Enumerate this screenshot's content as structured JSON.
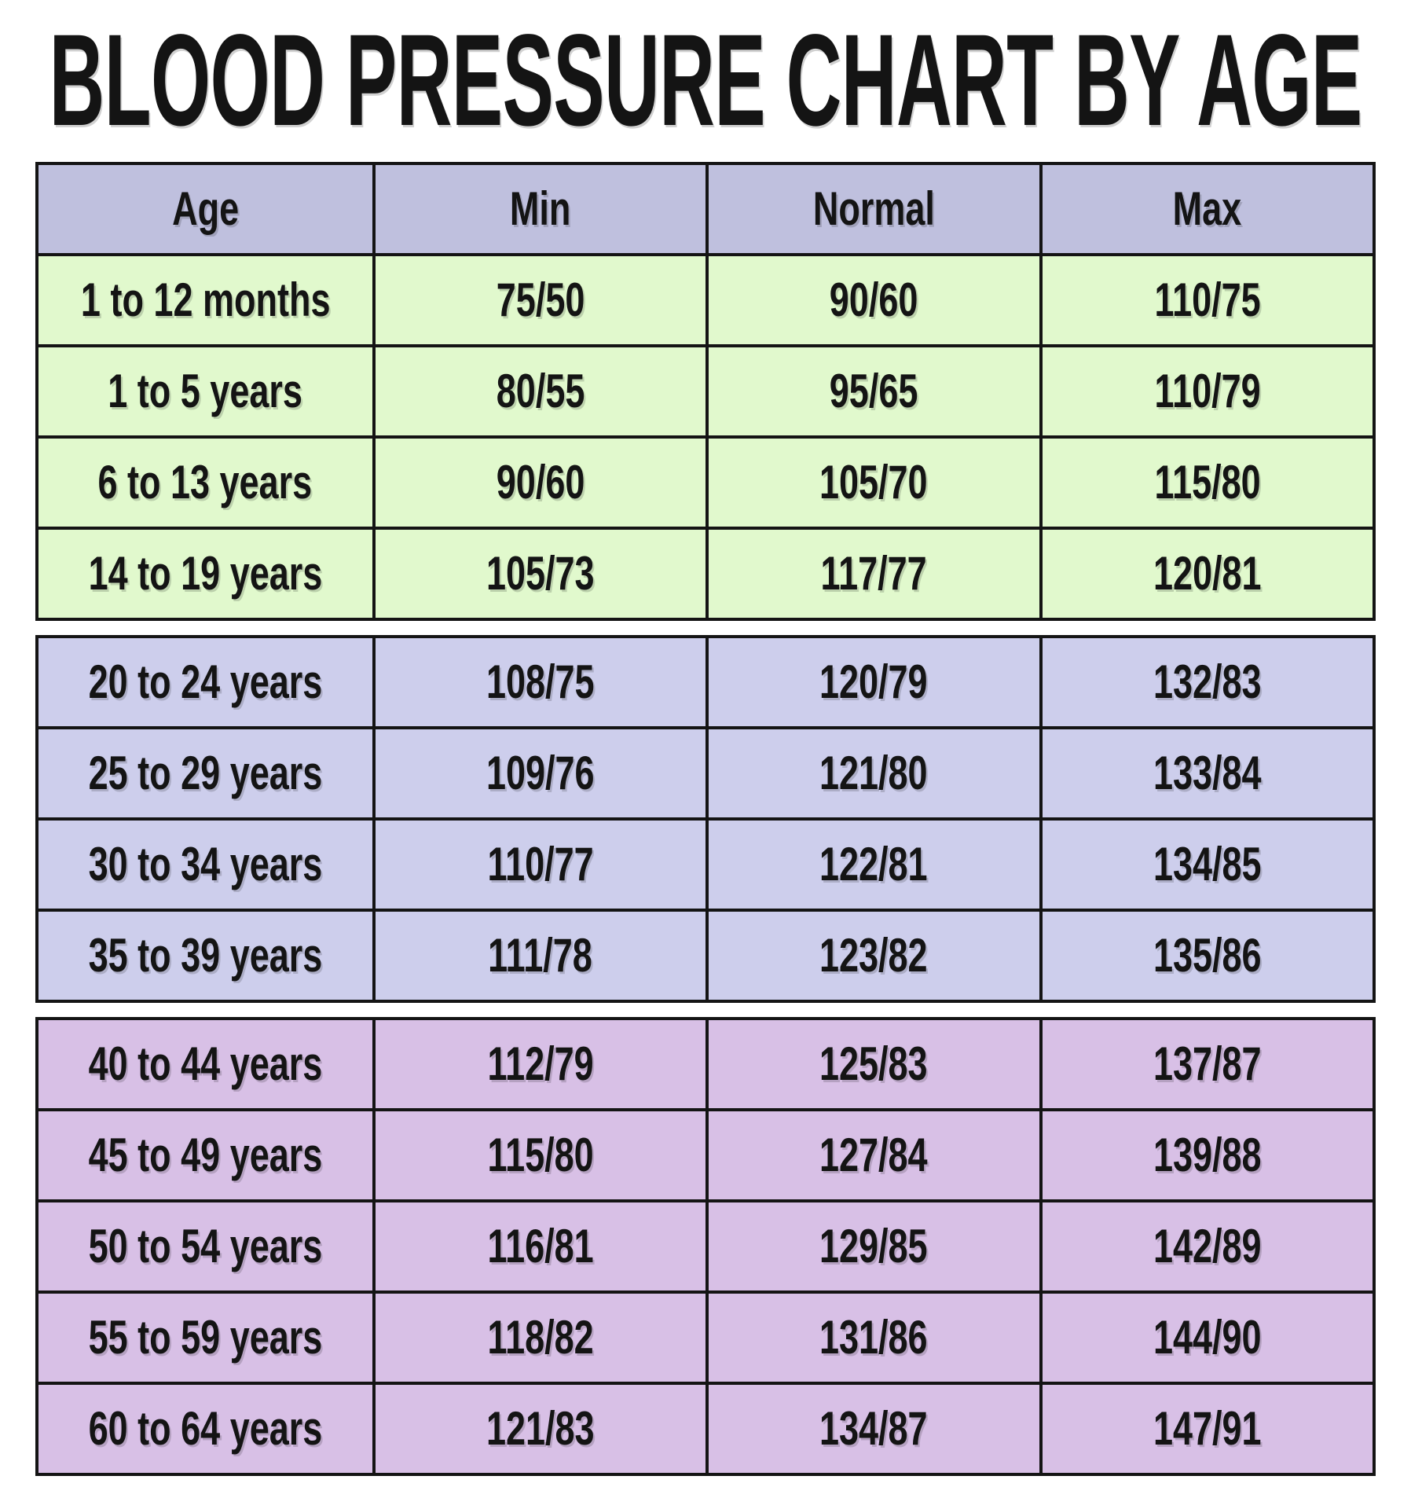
{
  "title": "BLOOD PRESSURE CHART BY AGE",
  "colors": {
    "page_bg": "#ffffff",
    "header_bg": "#bfc0de",
    "border": "#141414",
    "text": "#141414",
    "section_infants_teens_bg": "#e1f9cd",
    "section_20_39_bg": "#cdceec",
    "section_40_64_bg": "#d8c0e6"
  },
  "table": {
    "columns": [
      "Age",
      "Min",
      "Normal",
      "Max"
    ],
    "sections": [
      {
        "name": "infants-and-teens",
        "bg": "#e1f9cd",
        "rows": [
          {
            "age": "1 to 12 months",
            "min": "75/50",
            "normal": "90/60",
            "max": "110/75"
          },
          {
            "age": "1 to 5 years",
            "min": "80/55",
            "normal": "95/65",
            "max": "110/79"
          },
          {
            "age": "6 to 13 years",
            "min": "90/60",
            "normal": "105/70",
            "max": "115/80"
          },
          {
            "age": "14 to 19 years",
            "min": "105/73",
            "normal": "117/77",
            "max": "120/81"
          }
        ]
      },
      {
        "name": "adults-20-39",
        "bg": "#cdceec",
        "rows": [
          {
            "age": "20 to 24 years",
            "min": "108/75",
            "normal": "120/79",
            "max": "132/83"
          },
          {
            "age": "25 to 29 years",
            "min": "109/76",
            "normal": "121/80",
            "max": "133/84"
          },
          {
            "age": "30 to 34 years",
            "min": "110/77",
            "normal": "122/81",
            "max": "134/85"
          },
          {
            "age": "35 to 39 years",
            "min": "111/78",
            "normal": "123/82",
            "max": "135/86"
          }
        ]
      },
      {
        "name": "adults-40-64",
        "bg": "#d8c0e6",
        "rows": [
          {
            "age": "40 to 44 years",
            "min": "112/79",
            "normal": "125/83",
            "max": "137/87"
          },
          {
            "age": "45 to 49 years",
            "min": "115/80",
            "normal": "127/84",
            "max": "139/88"
          },
          {
            "age": "50 to 54 years",
            "min": "116/81",
            "normal": "129/85",
            "max": "142/89"
          },
          {
            "age": "55 to 59 years",
            "min": "118/82",
            "normal": "131/86",
            "max": "144/90"
          },
          {
            "age": "60 to 64 years",
            "min": "121/83",
            "normal": "134/87",
            "max": "147/91"
          }
        ]
      }
    ]
  },
  "chart_data": {
    "type": "table",
    "title": "BLOOD PRESSURE CHART BY AGE",
    "columns": [
      "Age",
      "Min",
      "Normal",
      "Max"
    ],
    "rows": [
      [
        "1 to 12 months",
        "75/50",
        "90/60",
        "110/75"
      ],
      [
        "1 to 5 years",
        "80/55",
        "95/65",
        "110/79"
      ],
      [
        "6 to 13 years",
        "90/60",
        "105/70",
        "115/80"
      ],
      [
        "14 to 19 years",
        "105/73",
        "117/77",
        "120/81"
      ],
      [
        "20 to 24 years",
        "108/75",
        "120/79",
        "132/83"
      ],
      [
        "25 to 29 years",
        "109/76",
        "121/80",
        "133/84"
      ],
      [
        "30 to 34 years",
        "110/77",
        "122/81",
        "134/85"
      ],
      [
        "35 to 39 years",
        "111/78",
        "123/82",
        "135/86"
      ],
      [
        "40 to 44 years",
        "112/79",
        "125/83",
        "137/87"
      ],
      [
        "45 to 49 years",
        "115/80",
        "127/84",
        "139/88"
      ],
      [
        "50 to 54 years",
        "116/81",
        "129/85",
        "142/89"
      ],
      [
        "55 to 59 years",
        "118/82",
        "131/86",
        "144/90"
      ],
      [
        "60 to 64 years",
        "121/83",
        "134/87",
        "147/91"
      ]
    ]
  }
}
